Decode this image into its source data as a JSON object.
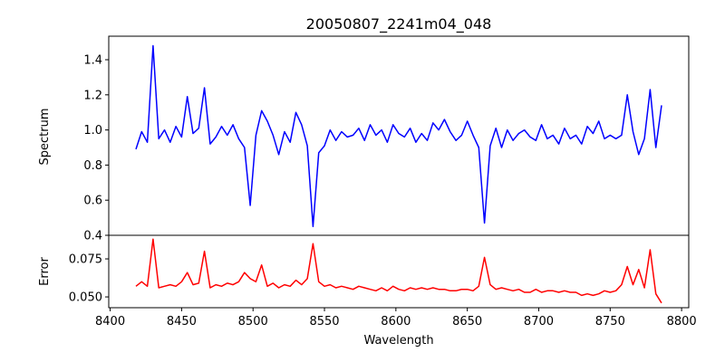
{
  "chart_data": [
    {
      "type": "line",
      "title": "20050807_2241m04_048",
      "xlabel": "",
      "ylabel": "Spectrum",
      "xlim": [
        8399,
        8805
      ],
      "ylim": [
        0.4,
        1.534
      ],
      "yticks": [
        0.4,
        0.6,
        0.8,
        1.0,
        1.2,
        1.4
      ],
      "ytick_labels": [
        "0.4",
        "0.6",
        "0.8",
        "1.0",
        "1.2",
        "1.4"
      ],
      "grid": false,
      "color": "#0000ff",
      "x_start": 8418,
      "x_step": 4,
      "values": [
        0.89,
        0.99,
        0.93,
        1.48,
        0.95,
        1.0,
        0.93,
        1.02,
        0.96,
        1.19,
        0.98,
        1.01,
        1.24,
        0.92,
        0.96,
        1.02,
        0.97,
        1.03,
        0.95,
        0.9,
        0.57,
        0.97,
        1.11,
        1.05,
        0.97,
        0.86,
        0.99,
        0.93,
        1.1,
        1.03,
        0.91,
        0.45,
        0.87,
        0.91,
        1.0,
        0.94,
        0.99,
        0.96,
        0.97,
        1.01,
        0.94,
        1.03,
        0.97,
        1.0,
        0.93,
        1.03,
        0.98,
        0.96,
        1.01,
        0.93,
        0.98,
        0.94,
        1.04,
        1.0,
        1.06,
        0.99,
        0.94,
        0.97,
        1.05,
        0.97,
        0.9,
        0.47,
        0.91,
        1.01,
        0.9,
        1.0,
        0.94,
        0.98,
        1.0,
        0.96,
        0.94,
        1.03,
        0.95,
        0.97,
        0.92,
        1.01,
        0.95,
        0.97,
        0.92,
        1.02,
        0.98,
        1.05,
        0.95,
        0.97,
        0.95,
        0.97,
        1.2,
        0.99,
        0.86,
        0.95,
        1.23,
        0.9,
        1.14
      ]
    },
    {
      "type": "line",
      "xlabel": "Wavelength",
      "ylabel": "Error",
      "xlim": [
        8399,
        8805
      ],
      "ylim": [
        0.0429,
        0.0905
      ],
      "yticks": [
        0.05,
        0.075
      ],
      "ytick_labels": [
        "0.050",
        "0.075"
      ],
      "xticks": [
        8400,
        8450,
        8500,
        8550,
        8600,
        8650,
        8700,
        8750,
        8800
      ],
      "xtick_labels": [
        "8400",
        "8450",
        "8500",
        "8550",
        "8600",
        "8650",
        "8700",
        "8750",
        "8800"
      ],
      "grid": false,
      "color": "#ff0000",
      "x_start": 8418,
      "x_step": 4,
      "values": [
        0.057,
        0.06,
        0.057,
        0.088,
        0.056,
        0.057,
        0.058,
        0.057,
        0.06,
        0.066,
        0.058,
        0.059,
        0.08,
        0.056,
        0.058,
        0.057,
        0.059,
        0.058,
        0.06,
        0.066,
        0.062,
        0.06,
        0.071,
        0.057,
        0.059,
        0.056,
        0.058,
        0.057,
        0.061,
        0.058,
        0.062,
        0.085,
        0.06,
        0.057,
        0.058,
        0.056,
        0.057,
        0.056,
        0.055,
        0.057,
        0.056,
        0.055,
        0.054,
        0.056,
        0.054,
        0.057,
        0.055,
        0.054,
        0.056,
        0.055,
        0.056,
        0.055,
        0.056,
        0.055,
        0.055,
        0.054,
        0.054,
        0.055,
        0.055,
        0.054,
        0.057,
        0.076,
        0.058,
        0.055,
        0.056,
        0.055,
        0.054,
        0.055,
        0.053,
        0.053,
        0.055,
        0.053,
        0.054,
        0.054,
        0.053,
        0.054,
        0.053,
        0.053,
        0.051,
        0.052,
        0.051,
        0.052,
        0.054,
        0.053,
        0.054,
        0.058,
        0.07,
        0.058,
        0.068,
        0.056,
        0.081,
        0.052,
        0.046
      ]
    }
  ]
}
